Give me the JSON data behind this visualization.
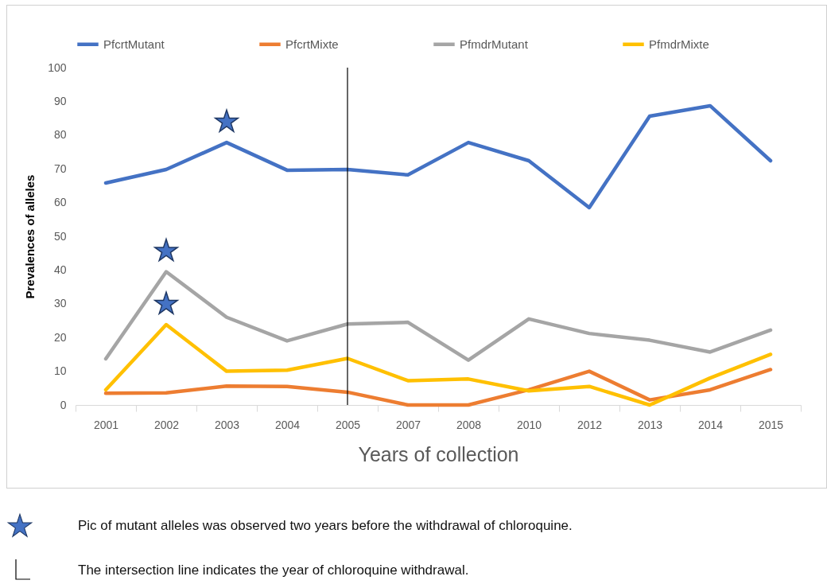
{
  "chart_data": {
    "type": "line",
    "xlabel": "Years of collection",
    "ylabel": "Prevalences of alleles",
    "categories": [
      "2001",
      "2002",
      "2003",
      "2004",
      "2005",
      "2007",
      "2008",
      "2010",
      "2012",
      "2013",
      "2014",
      "2015"
    ],
    "series": [
      {
        "name": "PfcrtMutant",
        "color": "#4472c4",
        "values": [
          65.8,
          69.8,
          77.8,
          69.6,
          69.8,
          68.2,
          77.8,
          72.4,
          58.5,
          85.6,
          88.7,
          72.4
        ]
      },
      {
        "name": "PfcrtMixte",
        "color": "#ed7d31",
        "values": [
          3.5,
          3.6,
          5.6,
          5.5,
          3.8,
          0,
          0,
          4.5,
          10,
          1.5,
          4.5,
          10.5
        ]
      },
      {
        "name": "PfmdrMutant",
        "color": "#a5a5a5",
        "values": [
          13.7,
          39.5,
          26,
          19,
          24,
          24.5,
          13.3,
          25.5,
          21.2,
          19.2,
          15.7,
          22.2
        ]
      },
      {
        "name": "PfmdrMixte",
        "color": "#ffc000",
        "values": [
          4.5,
          23.8,
          10,
          10.3,
          13.8,
          7.2,
          7.7,
          4.2,
          5.5,
          0,
          8,
          15
        ]
      }
    ],
    "ylim": [
      0,
      100
    ],
    "yticks": [
      0,
      10,
      20,
      30,
      40,
      50,
      60,
      70,
      80,
      90,
      100
    ],
    "grid": false,
    "legend": "top",
    "marker": "none",
    "line_style": "solid",
    "ref_lines": [
      {
        "axis": "x",
        "value": "2005",
        "color": "#000000"
      }
    ],
    "annotations": [
      "Pic of mutant alleles was observed two years before the withdrawal of chloroquine.",
      "The intersection line indicates the year of chloroquine withdrawal."
    ]
  }
}
